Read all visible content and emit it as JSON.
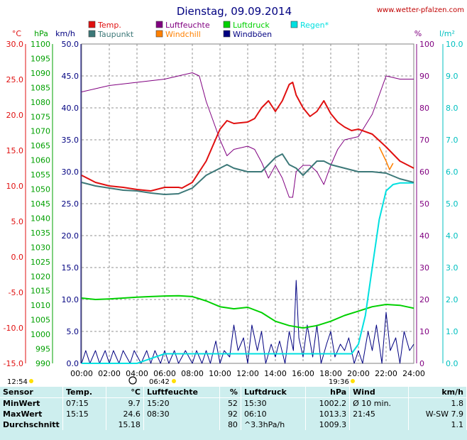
{
  "chart_data": {
    "type": "line",
    "title": "Dienstag, 09.09.2014",
    "source": "www.wetter-pfalzen.com",
    "axis_units": {
      "temp": "°C",
      "pressure": "hPa",
      "wind": "km/h",
      "humidity": "%",
      "rain": "l/m²"
    },
    "ylim": {
      "temp": [
        -15,
        30
      ],
      "pressure": [
        990,
        1100
      ],
      "wind": [
        0,
        50
      ],
      "humidity": [
        0,
        100
      ],
      "rain": [
        0,
        10
      ]
    },
    "temp_ticks": [
      "30.0",
      "25.0",
      "20.0",
      "15.0",
      "10.0",
      "5.0",
      "0.0",
      "-5.0",
      "-10.0",
      "-15.0"
    ],
    "pressure_ticks": [
      "1100",
      "1095",
      "1090",
      "1085",
      "1080",
      "1075",
      "1070",
      "1065",
      "1060",
      "1055",
      "1050",
      "1045",
      "1040",
      "1035",
      "1030",
      "1025",
      "1020",
      "1015",
      "1010",
      "1005",
      "1000",
      "995",
      "990"
    ],
    "wind_ticks": [
      "50.0",
      "45.0",
      "40.0",
      "35.0",
      "30.0",
      "25.0",
      "20.0",
      "15.0",
      "10.0",
      "5.0",
      "0.0"
    ],
    "humidity_ticks": [
      "100",
      "90",
      "80",
      "70",
      "60",
      "50",
      "40",
      "30",
      "20",
      "10",
      "0"
    ],
    "rain_ticks": [
      "10.0",
      "9.0",
      "8.0",
      "7.0",
      "6.0",
      "5.0",
      "4.0",
      "3.0",
      "2.0",
      "1.0",
      "0.0"
    ],
    "x_ticks": [
      "00:00",
      "02:00",
      "04:00",
      "06:00",
      "08:00",
      "10:00",
      "12:00",
      "14:00",
      "16:00",
      "18:00",
      "20:00",
      "22:00",
      "24:00"
    ],
    "legend": [
      {
        "name": "Temp.",
        "color": "#e01010"
      },
      {
        "name": "Taupunkt",
        "color": "#3c7878"
      },
      {
        "name": "Luftfeuchte",
        "color": "#800080"
      },
      {
        "name": "Windchill",
        "color": "#ff8000"
      },
      {
        "name": "Luftdruck",
        "color": "#00d000"
      },
      {
        "name": "Windböen",
        "color": "#000080"
      },
      {
        "name": "Regen*",
        "color": "#00e0e0"
      }
    ],
    "series": [
      {
        "name": "Temp.",
        "axis": "temp",
        "color": "#e01010",
        "x": [
          0,
          1,
          2,
          3,
          4,
          5,
          6,
          7,
          7.25,
          8,
          9,
          10,
          10.5,
          11,
          12,
          12.5,
          13,
          13.5,
          14,
          14.5,
          15,
          15.25,
          15.5,
          16,
          16.5,
          17,
          17.5,
          18,
          18.5,
          19,
          19.5,
          20,
          21,
          22,
          23,
          24
        ],
        "y": [
          11.5,
          10.5,
          10,
          9.8,
          9.5,
          9.3,
          9.8,
          9.8,
          9.7,
          10.5,
          13.5,
          18,
          19.2,
          18.8,
          19,
          19.5,
          21,
          22,
          20.5,
          22,
          24.3,
          24.6,
          22.8,
          21,
          19.8,
          20.5,
          22,
          20.2,
          19,
          18.3,
          17.8,
          18,
          17.3,
          15.5,
          13.5,
          12.5
        ]
      },
      {
        "name": "Taupunkt",
        "axis": "temp",
        "color": "#3c7878",
        "x": [
          0,
          1,
          2,
          3,
          4,
          5,
          6,
          7,
          8,
          9,
          10,
          10.5,
          11,
          12,
          13,
          13.5,
          14,
          14.5,
          15,
          15.5,
          16,
          16.5,
          17,
          17.5,
          18,
          19,
          20,
          21,
          22,
          23,
          24
        ],
        "y": [
          10.5,
          10,
          9.7,
          9.4,
          9.3,
          9,
          8.8,
          8.9,
          9.7,
          11.5,
          12.5,
          13,
          12.5,
          12,
          12,
          13,
          14,
          14.5,
          13,
          12.5,
          11.5,
          12.5,
          13.5,
          13.5,
          13,
          12.5,
          12,
          12,
          11.8,
          11,
          10.5
        ]
      },
      {
        "name": "Luftfeuchte",
        "axis": "humidity",
        "color": "#800080",
        "x": [
          0,
          1,
          2,
          3,
          4,
          5,
          6,
          7,
          8,
          8.5,
          9,
          10,
          10.5,
          11,
          12,
          12.5,
          13,
          13.5,
          14,
          14.5,
          15,
          15.25,
          15.5,
          16,
          16.5,
          17,
          17.5,
          18,
          18.5,
          19,
          20,
          21,
          21.5,
          22,
          23,
          24
        ],
        "y": [
          85,
          86,
          87,
          87.5,
          88,
          88.5,
          89,
          90,
          91,
          90,
          82,
          70,
          65,
          67,
          68,
          67,
          63,
          58,
          62,
          58,
          52,
          52,
          60,
          62,
          62,
          60,
          56,
          62,
          67,
          70,
          71,
          78,
          84,
          90,
          89,
          89
        ]
      },
      {
        "name": "Windchill",
        "axis": "temp",
        "color": "#ff8000",
        "x": [
          21.5,
          22,
          22.25,
          22.5
        ],
        "y": [
          15.5,
          13.5,
          12.3,
          13.2
        ]
      },
      {
        "name": "Luftdruck",
        "axis": "pressure",
        "color": "#00d000",
        "x": [
          0,
          1,
          2,
          3,
          4,
          5,
          6,
          7,
          8,
          9,
          10,
          11,
          12,
          13,
          14,
          15,
          16,
          17,
          18,
          19,
          20,
          21,
          22,
          23,
          24
        ],
        "y": [
          1012.5,
          1012,
          1012.2,
          1012.5,
          1012.8,
          1013,
          1013.2,
          1013.3,
          1013,
          1011.5,
          1009.5,
          1008.8,
          1009.3,
          1007.5,
          1004.5,
          1003,
          1002.2,
          1003,
          1004.5,
          1006.5,
          1008,
          1009.5,
          1010.3,
          1010,
          1009
        ]
      },
      {
        "name": "Windböen",
        "axis": "wind",
        "color": "#000080",
        "x": [
          0,
          0.3,
          0.6,
          1,
          1.3,
          1.7,
          2,
          2.3,
          2.7,
          3,
          3.5,
          3.8,
          4.3,
          4.7,
          5,
          5.3,
          5.7,
          6,
          6.3,
          6.7,
          7,
          7.5,
          8,
          8.3,
          8.7,
          9,
          9.3,
          9.7,
          10,
          10.3,
          10.7,
          11,
          11.3,
          11.7,
          12,
          12.3,
          12.7,
          13,
          13.3,
          13.7,
          14,
          14.3,
          14.7,
          15,
          15.3,
          15.5,
          15.7,
          16,
          16.3,
          16.7,
          17,
          17.3,
          17.7,
          18,
          18.3,
          18.7,
          19,
          19.3,
          19.7,
          20,
          20.3,
          20.7,
          21,
          21.3,
          21.7,
          22,
          22.3,
          22.7,
          23,
          23.3,
          23.7,
          24
        ],
        "y": [
          0,
          2,
          0,
          2,
          0,
          2,
          0,
          2,
          0,
          2,
          0,
          2,
          0,
          2,
          0,
          2,
          0,
          2,
          0,
          2,
          0,
          2,
          0,
          2,
          0,
          2,
          0,
          3.5,
          0,
          2,
          1,
          6,
          2,
          4,
          0,
          6,
          2,
          5,
          0,
          3,
          1,
          3.5,
          0,
          5,
          2,
          13,
          4,
          1,
          6,
          1,
          6,
          0,
          3,
          5,
          1,
          3,
          2,
          4,
          0,
          2,
          0,
          5,
          2,
          6,
          0,
          8,
          2,
          4,
          0,
          5,
          2,
          3
        ]
      },
      {
        "name": "Regen*",
        "axis": "rain",
        "color": "#00e0e0",
        "x": [
          0,
          4,
          6,
          8,
          10,
          12,
          14,
          16,
          18,
          19.5,
          20,
          20.5,
          21,
          21.5,
          22,
          22.5,
          23,
          24
        ],
        "y": [
          0,
          0,
          0.3,
          0.3,
          0.3,
          0.3,
          0.3,
          0.3,
          0.3,
          0.3,
          0.6,
          1.5,
          3.0,
          4.5,
          5.4,
          5.6,
          5.65,
          5.65
        ]
      }
    ],
    "markers": {
      "sunrise_label": "06:42",
      "sunset_label": "19:36",
      "moon_label": "12:54"
    }
  },
  "table": {
    "headers": {
      "sensor": "Sensor",
      "temp": "Temp.",
      "temp_unit": "°C",
      "hum": "Luftfeuchte",
      "hum_unit": "%",
      "press": "Luftdruck",
      "press_unit": "hPa",
      "wind": "Wind",
      "wind_unit": "km/h"
    },
    "rows": [
      {
        "label": "MinWert",
        "t_time": "07:15",
        "t_val": "9.7",
        "h_time": "15:20",
        "h_val": "52",
        "p_time": "15:30",
        "p_val": "1002.2",
        "w_time": "Ø 10 min.",
        "w_val": "1.8"
      },
      {
        "label": "MaxWert",
        "t_time": "15:15",
        "t_val": "24.6",
        "h_time": "08:30",
        "h_val": "92",
        "p_time": "06:10",
        "p_val": "1013.3",
        "w_time": "21:45",
        "w_val": "W-SW 7.9"
      },
      {
        "label": "Durchschnitt",
        "t_time": "",
        "t_val": "15.18",
        "h_time": "",
        "h_val": "80",
        "p_time": "^3.3hPa/h",
        "p_val": "1009.3",
        "w_time": "",
        "w_val": "1.1"
      }
    ]
  }
}
